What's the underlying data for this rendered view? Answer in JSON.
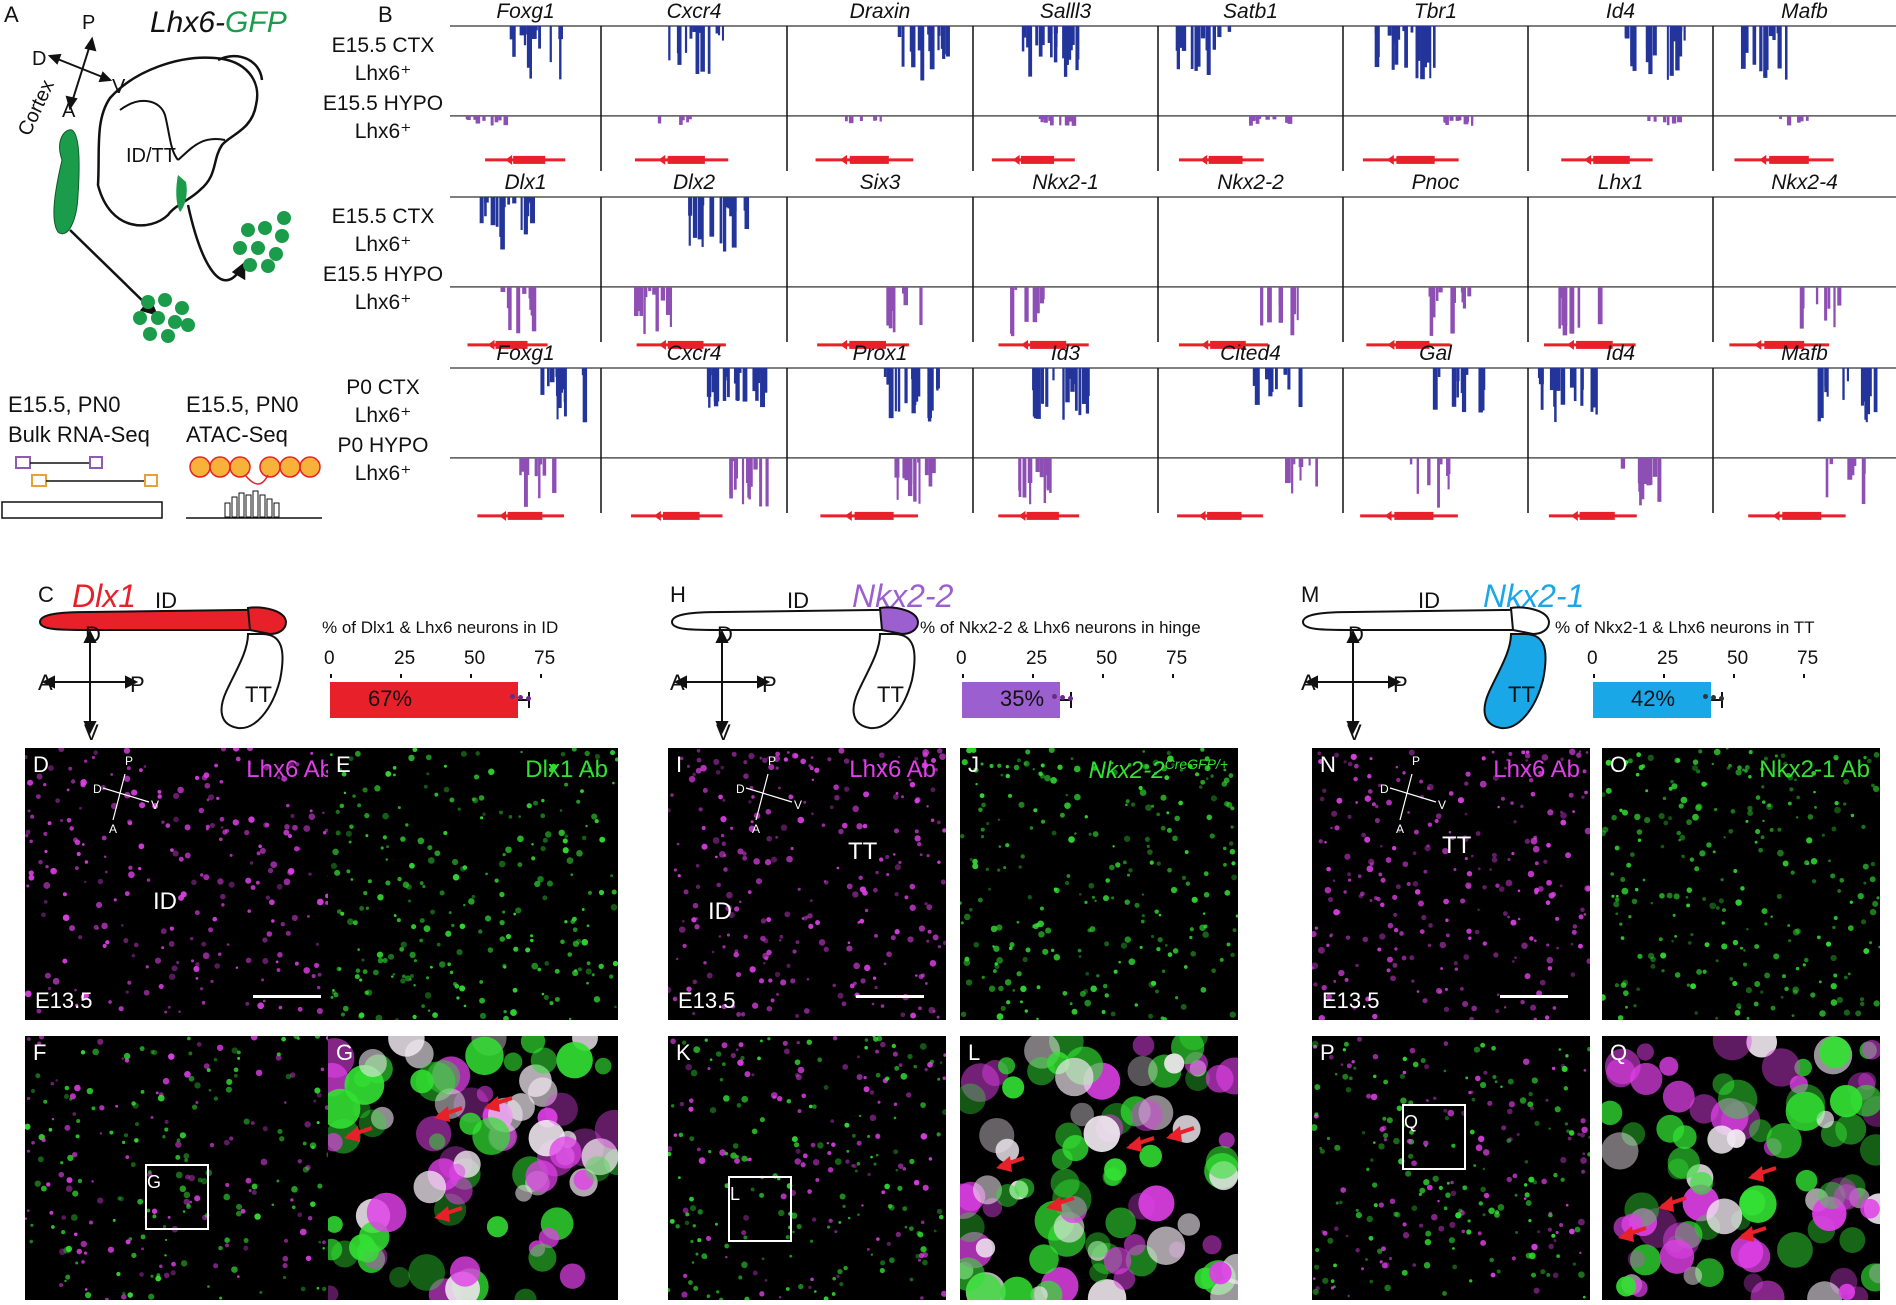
{
  "panels": {
    "A": {
      "letter": "A",
      "title_prefix": "Lhx6-",
      "title_suffix": "GFP",
      "axis": {
        "d": "D",
        "p": "P",
        "a": "A",
        "v": "V"
      },
      "region_cortex": "Cortex",
      "region_idtt": "ID/TT",
      "bulk": {
        "stage": "E15.5, PN0",
        "label": "Bulk RNA-Seq"
      },
      "atac": {
        "stage": "E15.5, PN0",
        "label": "ATAC-Seq"
      },
      "colors": {
        "green": "#1a9c4a",
        "purple": "#8e5bb0",
        "orange": "#e8a13a"
      }
    },
    "B": {
      "letter": "B",
      "blocks": [
        {
          "genes": [
            "Foxg1",
            "Cxcr4",
            "Draxin",
            "Salll3",
            "Satb1",
            "Tbr1",
            "Id4",
            "Mafb"
          ],
          "row1": [
            "E15.5 CTX",
            "Lhx6⁺"
          ],
          "row2": [
            "E15.5 HYPO",
            "Lhx6⁺"
          ]
        },
        {
          "genes": [
            "Dlx1",
            "Dlx2",
            "Six3",
            "Nkx2-1",
            "Nkx2-2",
            "Pnoc",
            "Lhx1",
            "Nkx2-4"
          ],
          "row1": [
            "E15.5 CTX",
            "Lhx6⁺"
          ],
          "row2": [
            "E15.5 HYPO",
            "Lhx6⁺"
          ]
        },
        {
          "genes": [
            "Foxg1",
            "Cxcr4",
            "Prox1",
            "Id3",
            "Cited4",
            "Gal",
            "Id4",
            "Mafb"
          ],
          "row1": [
            "P0 CTX",
            "Lhx6⁺"
          ],
          "row2": [
            "P0 HYPO",
            "Lhx6⁺"
          ]
        }
      ],
      "colors": {
        "ctx": "#23349a",
        "hypo": "#8e4fb5",
        "gene": "#e8202a"
      }
    },
    "C": {
      "letter": "C",
      "gene": "Dlx1",
      "gene_color": "#e8202a",
      "id": "ID",
      "tt": "TT",
      "axis": {
        "d": "D",
        "p": "P",
        "a": "A",
        "v": "V"
      },
      "bar_title": "% of Dlx1 & Lhx6 neurons in ID",
      "ticks": [
        "0",
        "25",
        "50",
        "75"
      ],
      "value": 67,
      "value_label": "67%",
      "bar_color": "#e8202a",
      "dot_color": "#6a2a8a"
    },
    "H": {
      "letter": "H",
      "gene": "Nkx2-2",
      "gene_color": "#9b5fcf",
      "id": "ID",
      "tt": "TT",
      "axis": {
        "d": "D",
        "p": "P",
        "a": "A",
        "v": "V"
      },
      "bar_title": "% of Nkx2-2 & Lhx6 neurons in hinge",
      "ticks": [
        "0",
        "25",
        "50",
        "75"
      ],
      "value": 35,
      "value_label": "35%",
      "bar_color": "#9b5fcf",
      "dot_color": "#6a2a8a"
    },
    "M": {
      "letter": "M",
      "gene": "Nkx2-1",
      "gene_color": "#1aa7e8",
      "id": "ID",
      "tt": "TT",
      "axis": {
        "d": "D",
        "p": "P",
        "a": "A",
        "v": "V"
      },
      "bar_title": "% of Nkx2-1 & Lhx6 neurons in TT",
      "ticks": [
        "0",
        "25",
        "50",
        "75"
      ],
      "value": 42,
      "value_label": "42%",
      "bar_color": "#1aa7e8",
      "dot_color": "#333333"
    },
    "micro": {
      "D": {
        "letter": "D",
        "stain": "Lhx6 Ab",
        "region": "ID",
        "stage": "E13.5",
        "axis": {
          "p": "P",
          "d": "D",
          "v": "V",
          "a": "A"
        }
      },
      "E": {
        "letter": "E",
        "stain": "Dlx1 Ab"
      },
      "F": {
        "letter": "F",
        "box": "G"
      },
      "G": {
        "letter": "G"
      },
      "I": {
        "letter": "I",
        "stain": "Lhx6 Ab",
        "region1": "ID",
        "region2": "TT",
        "stage": "E13.5",
        "axis": {
          "p": "P",
          "d": "D",
          "v": "V",
          "a": "A"
        }
      },
      "J": {
        "letter": "J",
        "stain_gene": "Nkx2-2",
        "stain_sup": "CreGFP/+"
      },
      "K": {
        "letter": "K",
        "box": "L"
      },
      "L": {
        "letter": "L"
      },
      "N": {
        "letter": "N",
        "stain": "Lhx6 Ab",
        "region": "TT",
        "stage": "E13.5",
        "axis": {
          "p": "P",
          "d": "D",
          "v": "V",
          "a": "A"
        }
      },
      "O": {
        "letter": "O",
        "stain": "Nkx2-1 Ab"
      },
      "P": {
        "letter": "P",
        "box": "Q"
      },
      "Q": {
        "letter": "Q"
      },
      "colors": {
        "magenta": "#e040e8",
        "green": "#33e033",
        "arrow": "#e8202a"
      }
    }
  }
}
